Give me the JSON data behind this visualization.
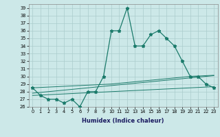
{
  "xlabel": "Humidex (Indice chaleur)",
  "xlim": [
    -0.5,
    23.5
  ],
  "ylim": [
    26,
    39.5
  ],
  "yticks": [
    26,
    27,
    28,
    29,
    30,
    31,
    32,
    33,
    34,
    35,
    36,
    37,
    38,
    39
  ],
  "xticks": [
    0,
    1,
    2,
    3,
    4,
    5,
    6,
    7,
    8,
    9,
    10,
    11,
    12,
    13,
    14,
    15,
    16,
    17,
    18,
    19,
    20,
    21,
    22,
    23
  ],
  "bg_color": "#cce8e8",
  "line_color": "#1a7a6a",
  "grid_color": "#aacccc",
  "line_main": [
    28.5,
    27.5,
    27.0,
    27.0,
    26.5,
    27.0,
    26.0,
    28.0,
    28.0,
    30.0,
    36.0,
    36.0,
    39.0,
    34.0,
    34.0,
    35.5,
    36.0,
    35.0,
    34.0,
    32.0,
    30.0,
    30.0,
    29.0,
    28.5
  ],
  "line_slope_low": [
    27.5,
    27.55,
    27.6,
    27.65,
    27.7,
    27.75,
    27.8,
    27.85,
    27.9,
    27.95,
    28.0,
    28.05,
    28.1,
    28.15,
    28.2,
    28.25,
    28.3,
    28.35,
    28.4,
    28.45,
    28.5,
    28.55,
    28.6,
    28.65
  ],
  "line_slope_mid": [
    27.8,
    27.9,
    28.0,
    28.1,
    28.2,
    28.3,
    28.4,
    28.5,
    28.6,
    28.7,
    28.8,
    28.9,
    29.0,
    29.1,
    29.2,
    29.3,
    29.4,
    29.5,
    29.6,
    29.7,
    29.8,
    29.9,
    30.0,
    30.1
  ],
  "line_slope_high": [
    28.5,
    28.55,
    28.6,
    28.65,
    28.7,
    28.75,
    28.8,
    28.85,
    28.9,
    28.95,
    29.0,
    29.1,
    29.2,
    29.3,
    29.4,
    29.5,
    29.6,
    29.7,
    29.8,
    29.9,
    30.0,
    30.05,
    30.1,
    30.15
  ]
}
